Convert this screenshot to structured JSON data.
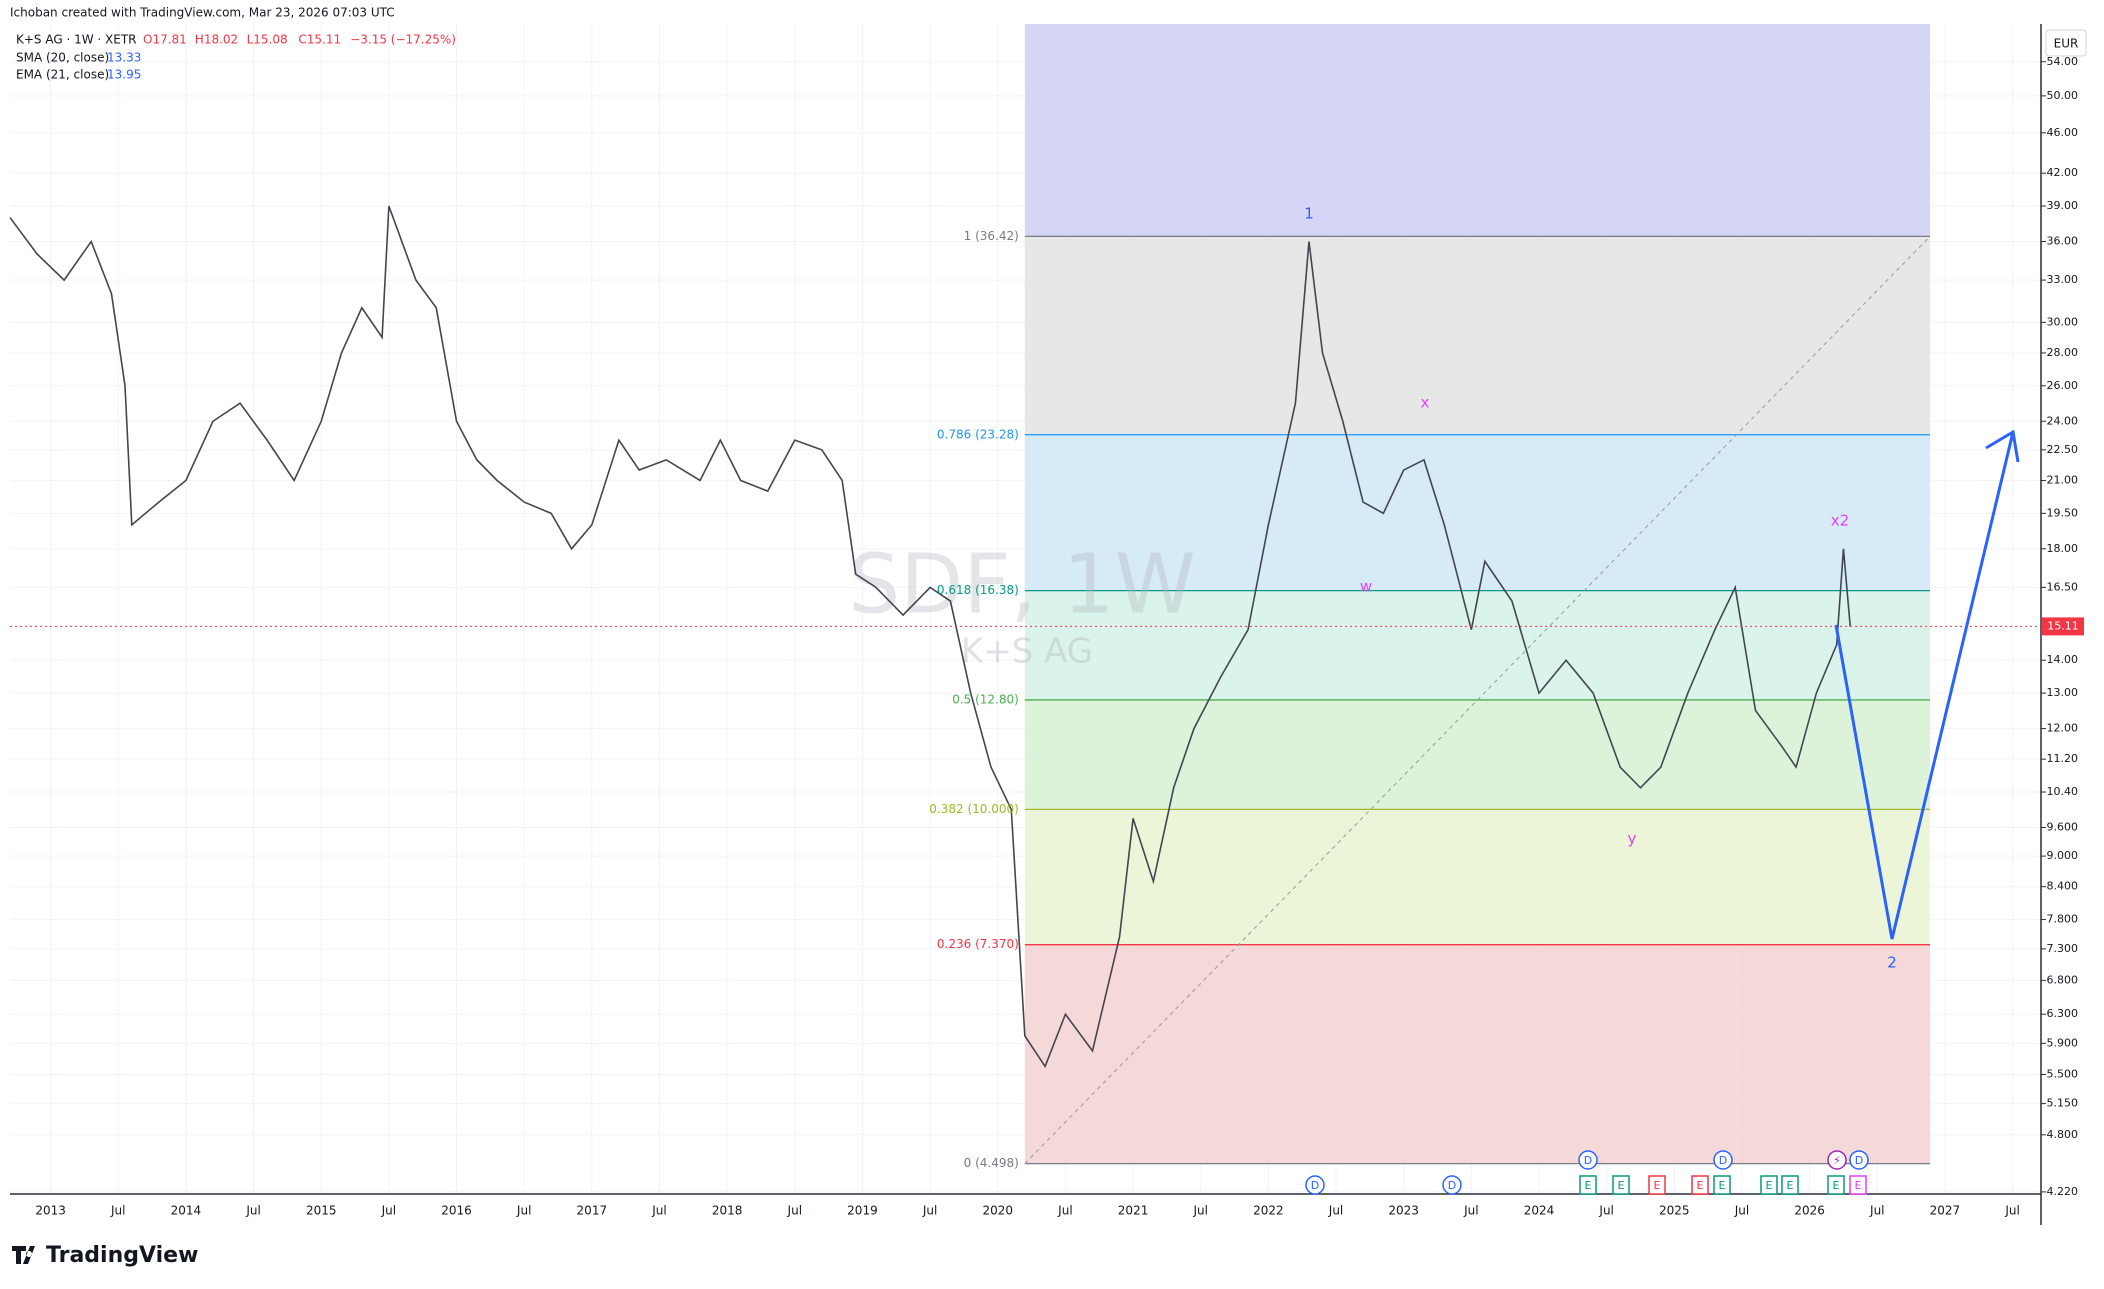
{
  "header": {
    "author_line": "Ichoban created with TradingView.com, Mar 23, 2026 07:03 UTC",
    "symbol": "K+S AG · 1W · XETR",
    "ohlc": [
      "O17.81",
      "H18.02",
      "L15.08",
      "C15.11",
      "−3.15 (−17.25%)"
    ],
    "sma_name": "SMA (20, close)",
    "sma_value": "13.33",
    "ema_name": "EMA (21, close)",
    "ema_value": "13.95",
    "currency": "EUR"
  },
  "watermark": {
    "ticker": "SDF, 1W",
    "name": "K+S AG"
  },
  "logo": "TradingView",
  "chart_data": {
    "type": "line",
    "log_scale": true,
    "grid": true,
    "color": "#434651",
    "x": [
      2012.7,
      2012.9,
      2013.1,
      2013.3,
      2013.45,
      2013.55,
      2013.6,
      2013.8,
      2014.0,
      2014.2,
      2014.4,
      2014.6,
      2014.8,
      2015.0,
      2015.15,
      2015.3,
      2015.45,
      2015.5,
      2015.7,
      2015.85,
      2016.0,
      2016.15,
      2016.3,
      2016.5,
      2016.7,
      2016.85,
      2017.0,
      2017.2,
      2017.35,
      2017.55,
      2017.8,
      2017.95,
      2018.1,
      2018.3,
      2018.5,
      2018.7,
      2018.85,
      2018.95,
      2019.1,
      2019.3,
      2019.5,
      2019.65,
      2019.8,
      2019.95,
      2020.1,
      2020.2,
      2020.35,
      2020.5,
      2020.7,
      2020.9,
      2021.0,
      2021.15,
      2021.3,
      2021.45,
      2021.65,
      2021.85,
      2022.0,
      2022.2,
      2022.3,
      2022.4,
      2022.55,
      2022.7,
      2022.85,
      2023.0,
      2023.15,
      2023.3,
      2023.5,
      2023.6,
      2023.8,
      2024.0,
      2024.2,
      2024.4,
      2024.6,
      2024.75,
      2024.9,
      2025.1,
      2025.3,
      2025.45,
      2025.6,
      2025.8,
      2025.9,
      2026.05,
      2026.2,
      2026.25,
      2026.3
    ],
    "series": [
      {
        "name": "K+S AG",
        "color": "#434651",
        "values": [
          38,
          35,
          33,
          36,
          32,
          26,
          19,
          20,
          21,
          24,
          25,
          23,
          21,
          24,
          28,
          31,
          29,
          39,
          33,
          31,
          24,
          22,
          21,
          20,
          19.5,
          18,
          19,
          23,
          21.5,
          22,
          21,
          23,
          21,
          20.5,
          23,
          22.5,
          21,
          17,
          16.5,
          15.5,
          16.5,
          16,
          13,
          11,
          10,
          6,
          5.6,
          6.3,
          5.8,
          7.5,
          9.8,
          8.5,
          10.5,
          12,
          13.5,
          15,
          19,
          25,
          36,
          28,
          24,
          20,
          19.5,
          21.5,
          22,
          19,
          15,
          17.5,
          16,
          13,
          14,
          13,
          11,
          10.5,
          11,
          13,
          15,
          16.5,
          12.5,
          11.5,
          11,
          13,
          14.5,
          18,
          15.11
        ]
      }
    ],
    "last_price": 15.11,
    "last_price_color": "#f23645",
    "xlim": [
      2012.7,
      2027.71
    ],
    "xticks": [
      2013,
      {
        "value": 2013.5,
        "label": "Jul"
      },
      2014,
      {
        "value": 2014.5,
        "label": "Jul"
      },
      2015,
      {
        "value": 2015.5,
        "label": "Jul"
      },
      2016,
      {
        "value": 2016.5,
        "label": "Jul"
      },
      2017,
      {
        "value": 2017.5,
        "label": "Jul"
      },
      2018,
      {
        "value": 2018.5,
        "label": "Jul"
      },
      2019,
      {
        "value": 2019.5,
        "label": "Jul"
      },
      2020,
      {
        "value": 2020.5,
        "label": "Jul"
      },
      2021,
      {
        "value": 2021.5,
        "label": "Jul"
      },
      2022,
      {
        "value": 2022.5,
        "label": "Jul"
      },
      2023,
      {
        "value": 2023.5,
        "label": "Jul"
      },
      2024,
      {
        "value": 2024.5,
        "label": "Jul"
      },
      2025,
      {
        "value": 2025.5,
        "label": "Jul"
      },
      2026,
      {
        "value": 2026.5,
        "label": "Jul"
      },
      2027,
      {
        "value": 2027.5,
        "label": "Jul"
      }
    ],
    "ylim": [
      4.2,
      58.8
    ],
    "yticks": [
      {
        "value": 4.22,
        "label": "4.220"
      },
      {
        "value": 4.8,
        "label": "4.800"
      },
      {
        "value": 5.15,
        "label": "5.150"
      },
      {
        "value": 5.5,
        "label": "5.500"
      },
      {
        "value": 5.9,
        "label": "5.900"
      },
      {
        "value": 6.3,
        "label": "6.300"
      },
      {
        "value": 6.8,
        "label": "6.800"
      },
      {
        "value": 7.3,
        "label": "7.300"
      },
      {
        "value": 7.8,
        "label": "7.800"
      },
      {
        "value": 8.4,
        "label": "8.400"
      },
      {
        "value": 9,
        "label": "9.000"
      },
      {
        "value": 9.6,
        "label": "9.600"
      },
      {
        "value": 10.4,
        "label": "10.40"
      },
      {
        "value": 11.2,
        "label": "11.20"
      },
      {
        "value": 12,
        "label": "12.00"
      },
      {
        "value": 13,
        "label": "13.00"
      },
      {
        "value": 14,
        "label": "14.00"
      },
      {
        "value": 16.5,
        "label": "16.50"
      },
      {
        "value": 18,
        "label": "18.00"
      },
      {
        "value": 19.5,
        "label": "19.50"
      },
      {
        "value": 21,
        "label": "21.00"
      },
      {
        "value": 22.5,
        "label": "22.50"
      },
      {
        "value": 24,
        "label": "24.00"
      },
      {
        "value": 26,
        "label": "26.00"
      },
      {
        "value": 28,
        "label": "28.00"
      },
      {
        "value": 30,
        "label": "30.00"
      },
      {
        "value": 33,
        "label": "33.00"
      },
      {
        "value": 36,
        "label": "36.00"
      },
      {
        "value": 39,
        "label": "39.00"
      },
      {
        "value": 42,
        "label": "42.00"
      },
      {
        "value": 46,
        "label": "46.00"
      },
      {
        "value": 50,
        "label": "50.00"
      },
      {
        "value": 54,
        "label": "54.00"
      }
    ],
    "fib": {
      "x": [
        2020.2,
        2026.89
      ],
      "top_color": "#d5d5f5",
      "levels": [
        36.42,
        23.28,
        16.38,
        12.8,
        10,
        7.37,
        4.498
      ],
      "labels": [
        "1 (36.42)",
        "0.786 (23.28)",
        "0.618 (16.38)",
        "0.5 (12.80)",
        "0.382 (10.000)",
        "0.236 (7.370)",
        "0 (4.498)"
      ],
      "colors": [
        "#787b86",
        "#2196f3",
        "#089981",
        "#4caf50",
        "#9cbb2a",
        "#f23645",
        "#787b86"
      ],
      "fills": [
        "#e4e4e4",
        "#d2e8f6",
        "#d6f3ea",
        "#d8f2d6",
        "#ebf4d4",
        "#f4d4d4"
      ]
    },
    "annotations": [
      "1",
      "x",
      "w",
      "y",
      "x2",
      "2"
    ],
    "events": [
      "D",
      "D",
      "D",
      "D",
      "⚡",
      "D",
      "E",
      "E",
      "E",
      "E",
      "E",
      "E",
      "E",
      "E",
      "E"
    ]
  }
}
